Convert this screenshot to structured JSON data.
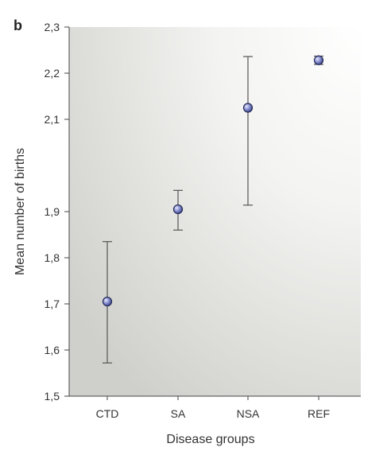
{
  "panel_label": "b",
  "chart_data": {
    "type": "scatter",
    "categories": [
      "CTD",
      "SA",
      "NSA",
      "REF"
    ],
    "values": [
      1.705,
      1.905,
      2.125,
      2.228
    ],
    "error_low": [
      1.572,
      1.86,
      1.914,
      2.219
    ],
    "error_high": [
      1.835,
      1.946,
      2.236,
      2.237
    ],
    "xlabel": "Disease groups",
    "ylabel": "Mean number of births",
    "ylim": [
      1.5,
      2.3
    ],
    "yticks": [
      "1,5",
      "1,6",
      "1,7",
      "1,8",
      "1,9",
      "2,1",
      "2,2",
      "2,3"
    ],
    "ytick_values": [
      1.5,
      1.6,
      1.7,
      1.8,
      1.9,
      2.1,
      2.2,
      2.3
    ],
    "grid": false,
    "legend": "none",
    "colors": {
      "marker_fill": "#7d84c9",
      "marker_stroke": "#232a57",
      "errorbar": "#555555",
      "axis": "#444444",
      "background_light": "#ffffff",
      "background_dark": "#cfcfcb"
    }
  }
}
